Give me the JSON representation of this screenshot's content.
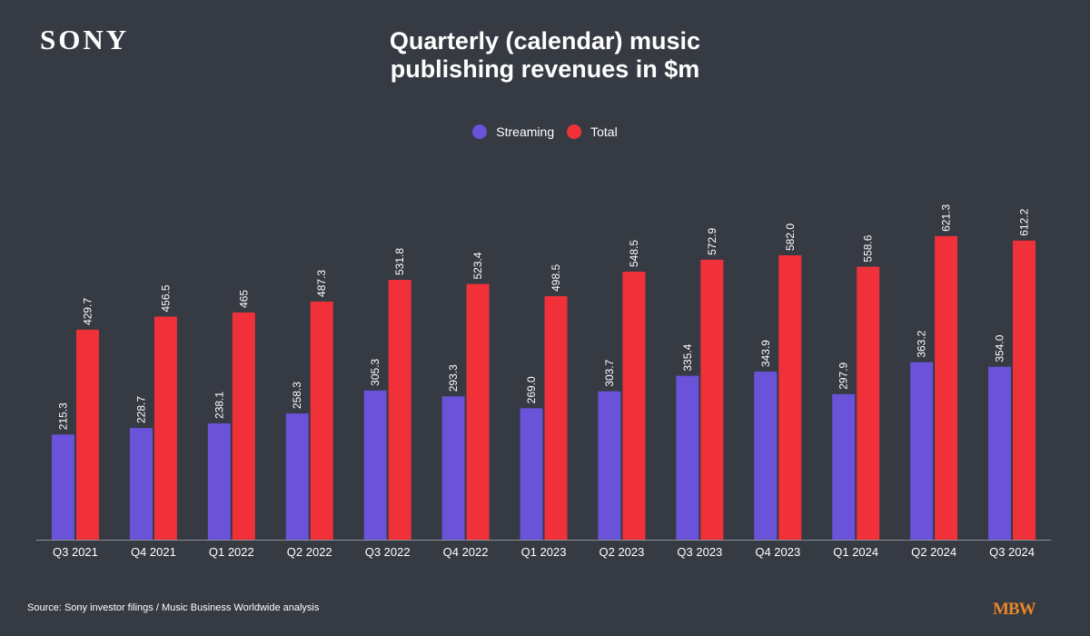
{
  "header": {
    "logo_text": "SONY",
    "title_line1": "Quarterly (calendar) music",
    "title_line2": "publishing revenues in $m"
  },
  "footer": {
    "source": "Source: Sony investor filings / Music Business Worldwide analysis",
    "brand": "MBW"
  },
  "colors": {
    "streaming": "#6a52d9",
    "total": "#f0313a",
    "background": "#363a42",
    "brand": "#e8862a"
  },
  "chart_data": {
    "type": "bar",
    "title": "Quarterly (calendar) music publishing revenues in $m",
    "xlabel": "",
    "ylabel": "",
    "ylim": [
      0,
      660
    ],
    "grid": false,
    "legend_position": "top-center",
    "categories": [
      "Q3 2021",
      "Q4 2021",
      "Q1 2022",
      "Q2 2022",
      "Q3 2022",
      "Q4 2022",
      "Q1 2023",
      "Q2 2023",
      "Q3 2023",
      "Q4 2023",
      "Q1 2024",
      "Q2 2024",
      "Q3 2024"
    ],
    "series": [
      {
        "name": "Streaming",
        "values": [
          215.3,
          228.7,
          238.1,
          258.3,
          305.3,
          293.3,
          269.0,
          303.7,
          335.4,
          343.9,
          297.9,
          363.2,
          354.0
        ],
        "labels": [
          "215.3",
          "228.7",
          "238.1",
          "258.3",
          "305.3",
          "293.3",
          "269.0",
          "303.7",
          "335.4",
          "343.9",
          "297.9",
          "363.2",
          "354.0"
        ]
      },
      {
        "name": "Total",
        "values": [
          429.7,
          456.5,
          465,
          487.3,
          531.8,
          523.4,
          498.5,
          548.5,
          572.9,
          582.0,
          558.6,
          621.3,
          612.2
        ],
        "labels": [
          "429.7",
          "456.5",
          "465",
          "487.3",
          "531.8",
          "523.4",
          "498.5",
          "548.5",
          "572.9",
          "582.0",
          "558.6",
          "621.3",
          "612.2"
        ]
      }
    ]
  }
}
